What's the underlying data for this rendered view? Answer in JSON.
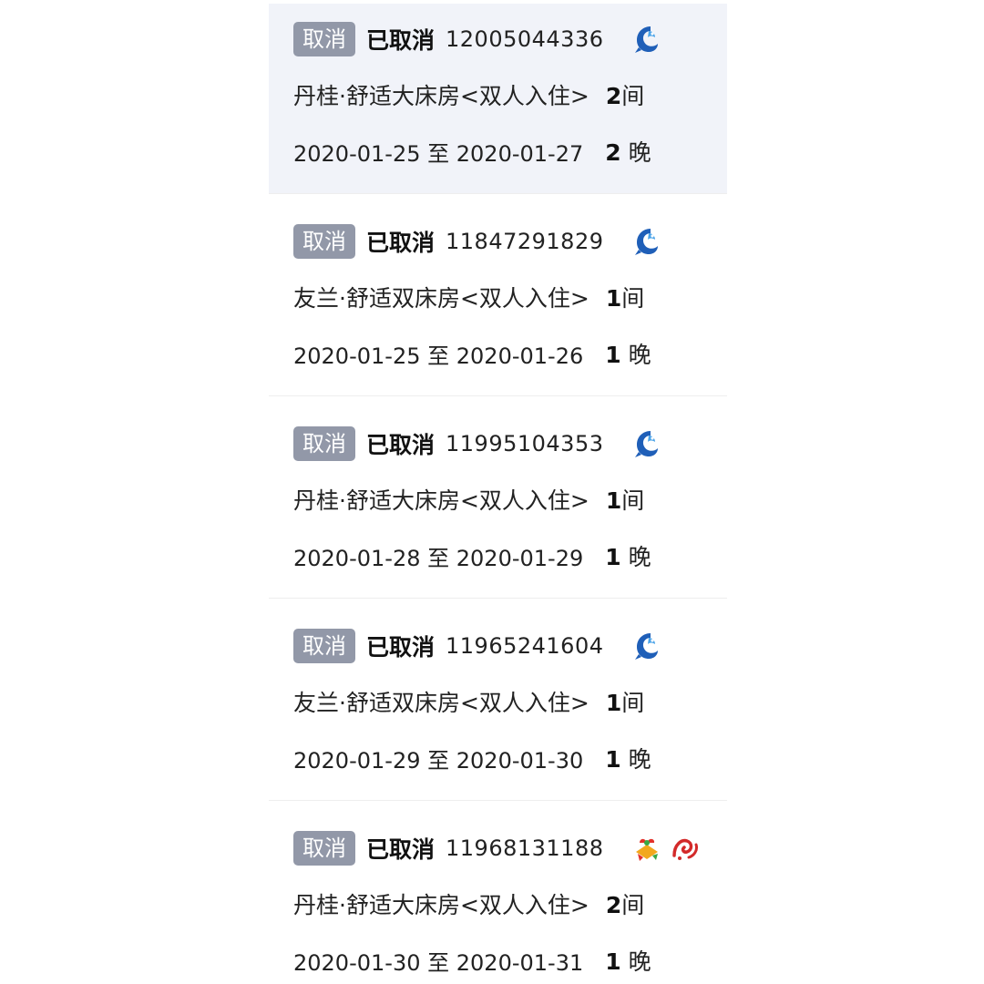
{
  "orders": [
    {
      "cancel_label": "取消",
      "status": "已取消",
      "order_id": "12005044336",
      "channel_icons": [
        "blue-shrimp-icon"
      ],
      "room_name": "丹桂·舒适大床房<双人入住>",
      "room_qty": "2",
      "room_unit": "间",
      "check_in": "2020-01-25",
      "range_sep": "至",
      "check_out": "2020-01-27",
      "nights_qty": "2",
      "nights_unit": "晚"
    },
    {
      "cancel_label": "取消",
      "status": "已取消",
      "order_id": "11847291829",
      "channel_icons": [
        "blue-shrimp-icon"
      ],
      "room_name": "友兰·舒适双床房<双人入住>",
      "room_qty": "1",
      "room_unit": "间",
      "check_in": "2020-01-25",
      "range_sep": "至",
      "check_out": "2020-01-26",
      "nights_qty": "1",
      "nights_unit": "晚"
    },
    {
      "cancel_label": "取消",
      "status": "已取消",
      "order_id": "11995104353",
      "channel_icons": [
        "blue-shrimp-icon"
      ],
      "room_name": "丹桂·舒适大床房<双人入住>",
      "room_qty": "1",
      "room_unit": "间",
      "check_in": "2020-01-28",
      "range_sep": "至",
      "check_out": "2020-01-29",
      "nights_qty": "1",
      "nights_unit": "晚"
    },
    {
      "cancel_label": "取消",
      "status": "已取消",
      "order_id": "11965241604",
      "channel_icons": [
        "blue-shrimp-icon"
      ],
      "room_name": "友兰·舒适双床房<双人入住>",
      "room_qty": "1",
      "room_unit": "间",
      "check_in": "2020-01-29",
      "range_sep": "至",
      "check_out": "2020-01-30",
      "nights_qty": "1",
      "nights_unit": "晚"
    },
    {
      "cancel_label": "取消",
      "status": "已取消",
      "order_id": "11968131188",
      "channel_icons": [
        "colorful-gift-icon",
        "red-swirl-icon"
      ],
      "room_name": "丹桂·舒适大床房<双人入住>",
      "room_qty": "2",
      "room_unit": "间",
      "check_in": "2020-01-30",
      "range_sep": "至",
      "check_out": "2020-01-31",
      "nights_qty": "1",
      "nights_unit": "晚"
    }
  ],
  "colors": {
    "cancel_button_bg": "#9298a8",
    "highlight_row_bg": "#f1f3f9",
    "shrimp_blue": "#1f5fb8"
  }
}
